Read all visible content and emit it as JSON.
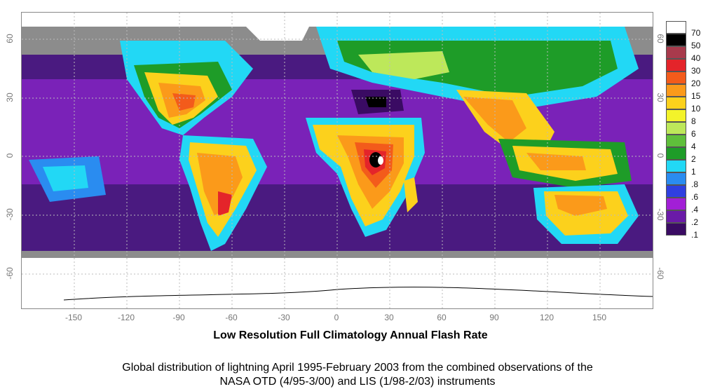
{
  "map": {
    "x_ticks": [
      "-150",
      "-120",
      "-90",
      "-60",
      "-30",
      "0",
      "30",
      "60",
      "90",
      "120",
      "150"
    ],
    "lat_ticks_left": [
      "60",
      "30",
      "0",
      "-30",
      "-60"
    ],
    "lat_ticks_right": [
      "60",
      "30",
      "0",
      "-30",
      "-60"
    ]
  },
  "legend": {
    "entries": [
      {
        "label": "70",
        "color": "#ffffff"
      },
      {
        "label": "50",
        "color": "#000000"
      },
      {
        "label": "40",
        "color": "#a83a4c"
      },
      {
        "label": "30",
        "color": "#e4242a"
      },
      {
        "label": "20",
        "color": "#f35b1b"
      },
      {
        "label": "15",
        "color": "#fb9a1a"
      },
      {
        "label": "10",
        "color": "#fcd11c"
      },
      {
        "label": "8",
        "color": "#f3f32a"
      },
      {
        "label": "6",
        "color": "#bde85a"
      },
      {
        "label": "4",
        "color": "#5fbf3b"
      },
      {
        "label": "2",
        "color": "#1e9c28"
      },
      {
        "label": "1",
        "color": "#22d8f5"
      },
      {
        "label": ".8",
        "color": "#2a8cf0"
      },
      {
        "label": ".6",
        "color": "#2f3fe0"
      },
      {
        "label": ".4",
        "color": "#a21fd6"
      },
      {
        "label": ".2",
        "color": "#6a1aa8"
      },
      {
        "label": ".1",
        "color": "#3a0b63"
      }
    ]
  },
  "title": "Low Resolution Full Climatology Annual Flash Rate",
  "caption": "Global distribution of lightning April 1995-February 2003 from the combined observations of the NASA OTD (4/95-3/00) and LIS (1/98-2/03) instruments"
}
